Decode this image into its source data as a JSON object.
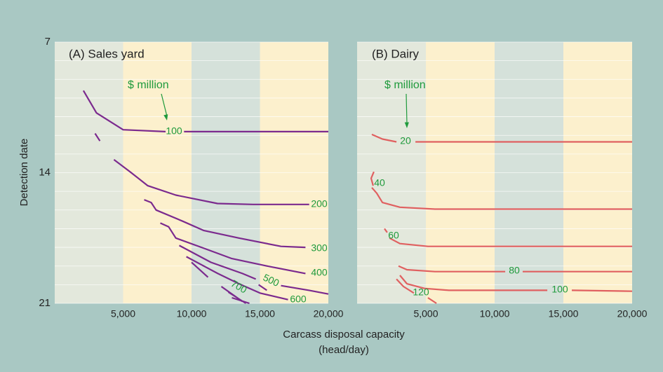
{
  "figure": {
    "ylabel": "Detection date",
    "xlabel_lines": [
      "Carcass disposal capacity",
      "(head/day)"
    ]
  },
  "chart_data": [
    {
      "type": "contour",
      "title": "(A) Sales yard",
      "annotation": "$ million",
      "xlim": [
        0,
        20000
      ],
      "ylim": [
        21,
        7
      ],
      "xticks": [
        {
          "value": 5000,
          "label": "5,000"
        },
        {
          "value": 10000,
          "label": "10,000"
        },
        {
          "value": 15000,
          "label": "15,000"
        },
        {
          "value": 20000,
          "label": "20,000"
        }
      ],
      "yticks": [
        7,
        14,
        21
      ],
      "ygrid": [
        7,
        8,
        9,
        10,
        11,
        12,
        13,
        14,
        15,
        16,
        17,
        18,
        19,
        20,
        21
      ],
      "band_colors": [
        "#e3e8dc",
        "#fcf0cd",
        "#d5e1da",
        "#fcf0cd"
      ],
      "series": [
        {
          "name": "100",
          "color": "#7b2a8e",
          "x": [
            2100,
            3050,
            5000,
            8100,
            null,
            9450,
            20000
          ],
          "y": [
            9.6,
            10.8,
            11.7,
            11.8,
            null,
            11.8,
            11.8
          ]
        },
        {
          "name": "200",
          "color": "#7b2a8e",
          "x": [
            2950,
            3300,
            null,
            4330,
            5510,
            6800,
            8850,
            11900,
            14500,
            18600
          ],
          "y": [
            11.9,
            12.3,
            null,
            13.3,
            13.95,
            14.7,
            15.2,
            15.65,
            15.7,
            15.7
          ]
        },
        {
          "name": "300",
          "color": "#7b2a8e",
          "x": [
            6540,
            7050,
            7410,
            9360,
            10900,
            13460,
            16540,
            18330
          ],
          "y": [
            15.45,
            15.6,
            16.0,
            16.6,
            17.1,
            17.5,
            17.95,
            18.0
          ]
        },
        {
          "name": "400",
          "color": "#7b2a8e",
          "x": [
            7720,
            8330,
            8850,
            10900,
            12950,
            15510,
            18330
          ],
          "y": [
            16.7,
            16.9,
            17.5,
            18.05,
            18.6,
            19.0,
            19.4
          ]
        },
        {
          "name": "500",
          "color": "#7b2a8e",
          "x": [
            9100,
            11410,
            13720,
            14700,
            null,
            16540,
            18590,
            20000
          ],
          "y": [
            17.9,
            18.8,
            19.4,
            19.7,
            null,
            20.05,
            20.3,
            20.5
          ]
        },
        {
          "name": "600",
          "color": "#7b2a8e",
          "x": [
            9620,
            11920,
            13460,
            15000,
            17050
          ],
          "y": [
            18.5,
            19.4,
            19.95,
            20.45,
            20.8
          ]
        },
        {
          "name": "700",
          "color": "#7b2a8e",
          "x": [
            10000,
            11200,
            null,
            12180,
            13720,
            null,
            12690,
            13970,
            null,
            12950,
            14230,
            null,
            14900,
            15500
          ],
          "y": [
            18.8,
            19.6,
            null,
            20.1,
            20.9,
            null,
            20.4,
            21,
            null,
            20.7,
            21,
            null,
            20.0,
            20.3
          ]
        }
      ]
    },
    {
      "type": "contour",
      "title": "(B) Dairy",
      "annotation": "$ million",
      "xlim": [
        0,
        20000
      ],
      "ylim": [
        21,
        7
      ],
      "xticks": [
        {
          "value": 5000,
          "label": "5,000"
        },
        {
          "value": 10000,
          "label": "10,000"
        },
        {
          "value": 15000,
          "label": "15,000"
        },
        {
          "value": 20000,
          "label": "20,000"
        }
      ],
      "ygrid": [
        7,
        8,
        9,
        10,
        11,
        12,
        13,
        14,
        15,
        16,
        17,
        18,
        19,
        20,
        21
      ],
      "band_colors": [
        "#e3e8dc",
        "#fcf0cd",
        "#d5e1da",
        "#fcf0cd"
      ],
      "series": [
        {
          "name": "20",
          "color": "#e06060",
          "x": [
            1070,
            1840,
            2860,
            null,
            4240,
            20000
          ],
          "y": [
            11.95,
            12.2,
            12.35,
            null,
            12.35,
            12.35
          ]
        },
        {
          "name": "40",
          "color": "#e06060",
          "x": [
            1220,
            1020,
            1170,
            null,
            1070,
            1430,
            1840,
            3110,
            5660,
            20000
          ],
          "y": [
            13.95,
            14.3,
            14.7,
            null,
            14.8,
            15.1,
            15.6,
            15.85,
            15.95,
            15.95
          ]
        },
        {
          "name": "60",
          "color": "#e06060",
          "x": [
            1990,
            2190,
            null,
            2350,
            3110,
            5150,
            20000
          ],
          "y": [
            17.0,
            17.2,
            null,
            17.5,
            17.8,
            17.95,
            17.95
          ]
        },
        {
          "name": "80",
          "color": "#e06060",
          "x": [
            3010,
            3620,
            5660,
            10770,
            null,
            12040,
            20000
          ],
          "y": [
            19.0,
            19.2,
            19.3,
            19.3,
            null,
            19.3,
            19.3
          ]
        },
        {
          "name": "100",
          "color": "#e06060",
          "x": [
            3110,
            3620,
            4900,
            6680,
            13830,
            null,
            15610,
            20000
          ],
          "y": [
            19.5,
            19.95,
            20.2,
            20.3,
            20.3,
            null,
            20.3,
            20.35
          ]
        },
        {
          "name": "120",
          "color": "#e06060",
          "x": [
            2860,
            3370,
            4130,
            null,
            5150,
            5770
          ],
          "y": [
            19.7,
            20.1,
            20.45,
            null,
            20.7,
            21.0
          ]
        }
      ]
    }
  ]
}
